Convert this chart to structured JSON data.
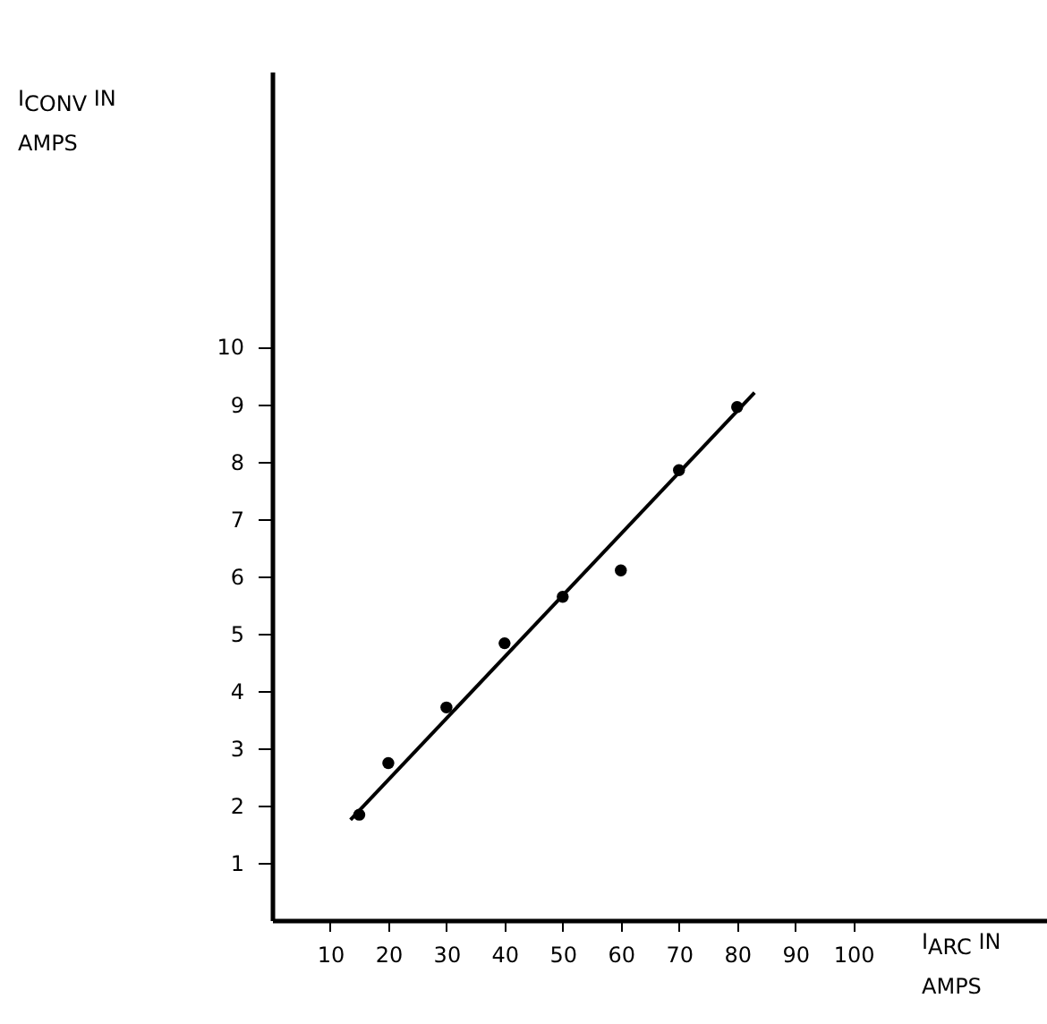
{
  "chart_data": {
    "type": "scatter",
    "xlabel": "I$_{ARC}$ IN AMPS",
    "ylabel": "I$_{CONV}$ IN AMPS",
    "xlim": [
      0,
      137
    ],
    "ylim": [
      0,
      14.8
    ],
    "xticks": [
      10,
      20,
      30,
      40,
      50,
      60,
      70,
      80,
      90,
      100
    ],
    "yticks": [
      1,
      2,
      3,
      4,
      5,
      6,
      7,
      8,
      9,
      10
    ],
    "grid": false,
    "series": [
      {
        "color": "#000000",
        "marker": "circle",
        "x": [
          15,
          20,
          30,
          40,
          50,
          60,
          70,
          80
        ],
        "values": [
          1.84,
          2.74,
          3.71,
          4.83,
          5.64,
          6.1,
          7.85,
          8.95
        ]
      },
      {
        "type": "line",
        "color": "#000000",
        "line_style": "solid",
        "x": [
          13.5,
          83
        ],
        "values": [
          1.75,
          9.2
        ]
      }
    ]
  }
}
